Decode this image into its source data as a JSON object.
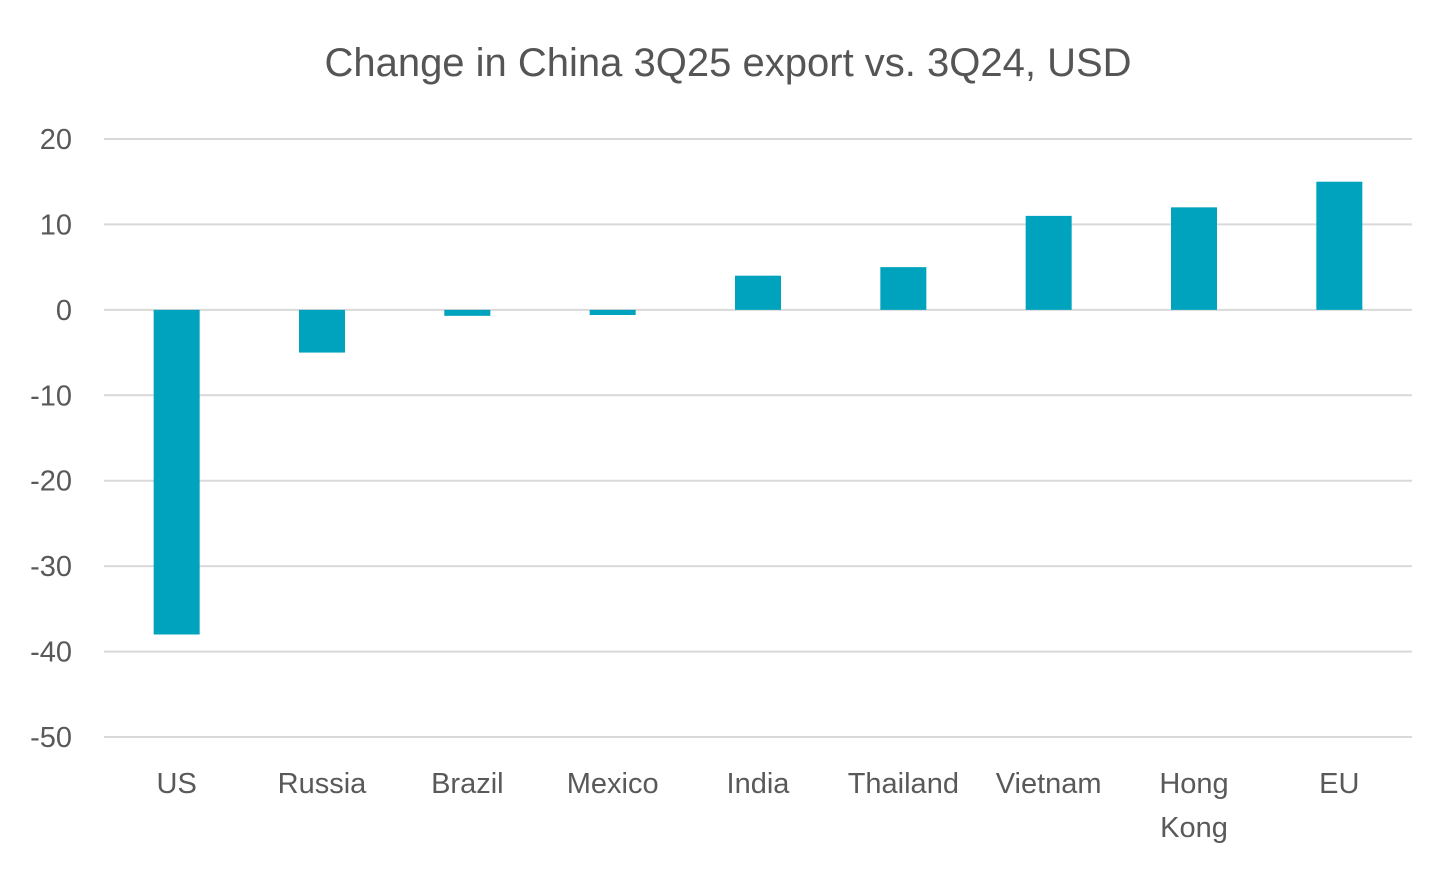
{
  "chart_data": {
    "type": "bar",
    "title": "Change in China 3Q25 export vs. 3Q24, USD",
    "categories": [
      "US",
      "Russia",
      "Brazil",
      "Mexico",
      "India",
      "Thailand",
      "Vietnam",
      "Hong Kong",
      "EU"
    ],
    "category_lines": [
      [
        "US"
      ],
      [
        "Russia"
      ],
      [
        "Brazil"
      ],
      [
        "Mexico"
      ],
      [
        "India"
      ],
      [
        "Thailand"
      ],
      [
        "Vietnam"
      ],
      [
        "Hong",
        "Kong"
      ],
      [
        "EU"
      ]
    ],
    "values": [
      -38,
      -5,
      -0.7,
      -0.6,
      4,
      5,
      11,
      12,
      15
    ],
    "ylim": [
      -50,
      20
    ],
    "yticks": [
      20,
      10,
      0,
      -10,
      -20,
      -30,
      -40,
      -50
    ],
    "xlabel": "",
    "ylabel": "",
    "grid": true,
    "legend": "none",
    "colors": {
      "bar": "#00A3BE",
      "grid": "#D9D9D9",
      "text": "#595959"
    }
  }
}
